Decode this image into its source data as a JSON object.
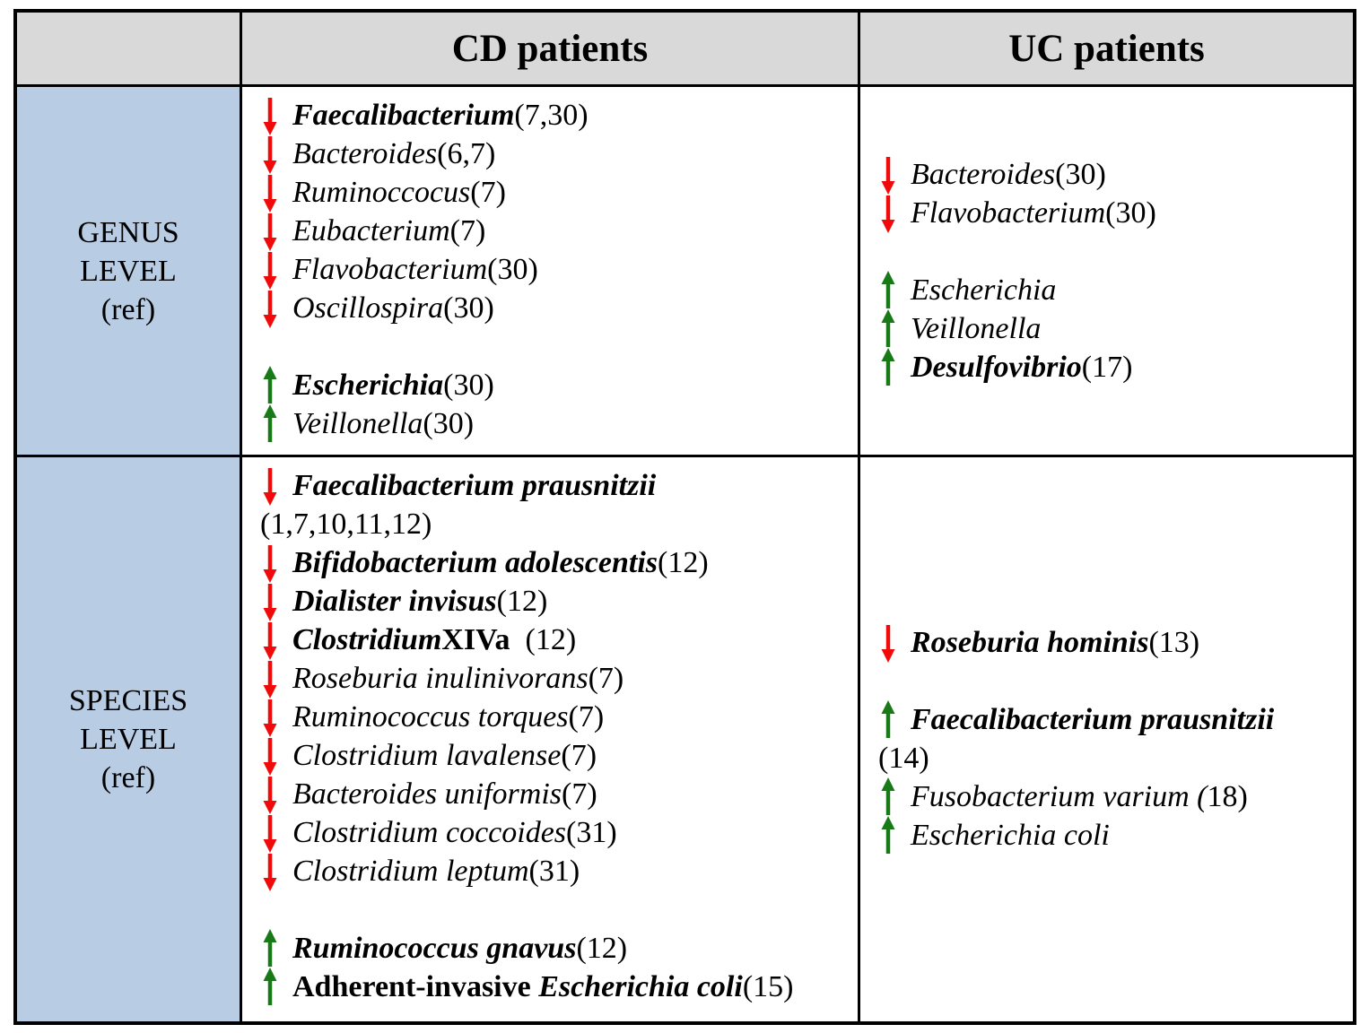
{
  "table": {
    "header": {
      "corner": "",
      "cd": "CD patients",
      "uc": "UC patients"
    },
    "row_labels": [
      {
        "lines": [
          "GENUS",
          "LEVEL",
          "(ref)"
        ]
      },
      {
        "lines": [
          "SPECIES",
          "LEVEL",
          "(ref)"
        ]
      }
    ],
    "colors": {
      "header_bg": "#d9d9d9",
      "label_bg": "#b8cce4",
      "border": "#000000",
      "decrease_arrow": "#f00a0a",
      "increase_arrow": "#177a17"
    },
    "cells": {
      "genus_cd": {
        "lines": [
          {
            "arrow": "down",
            "segments": [
              {
                "text": "Faecalibacterium",
                "style": "bi"
              },
              {
                "text": " (7,30)",
                "style": "r"
              }
            ]
          },
          {
            "arrow": "down",
            "segments": [
              {
                "text": "Bacteroides",
                "style": "i"
              },
              {
                "text": " (6,7)",
                "style": "r"
              }
            ]
          },
          {
            "arrow": "down",
            "segments": [
              {
                "text": "Ruminoccocus",
                "style": "i"
              },
              {
                "text": " (7)",
                "style": "r"
              }
            ]
          },
          {
            "arrow": "down",
            "segments": [
              {
                "text": "Eubacterium",
                "style": "i"
              },
              {
                "text": " (7)",
                "style": "r"
              }
            ]
          },
          {
            "arrow": "down",
            "segments": [
              {
                "text": "Flavobacterium",
                "style": "i"
              },
              {
                "text": " (30)",
                "style": "r"
              }
            ]
          },
          {
            "arrow": "down",
            "segments": [
              {
                "text": "Oscillospira",
                "style": "i"
              },
              {
                "text": " (30)",
                "style": "r"
              }
            ]
          },
          {
            "blank": true
          },
          {
            "arrow": "up",
            "segments": [
              {
                "text": "Escherichia",
                "style": "bi"
              },
              {
                "text": " (30)",
                "style": "r"
              }
            ]
          },
          {
            "arrow": "up",
            "segments": [
              {
                "text": "Veillonella",
                "style": "i"
              },
              {
                "text": " (30)",
                "style": "r"
              }
            ]
          }
        ]
      },
      "genus_uc": {
        "lines": [
          {
            "arrow": "down",
            "segments": [
              {
                "text": "Bacteroides",
                "style": "i"
              },
              {
                "text": " (30)",
                "style": "r"
              }
            ]
          },
          {
            "arrow": "down",
            "segments": [
              {
                "text": "Flavobacterium",
                "style": "i"
              },
              {
                "text": " (30)",
                "style": "r"
              }
            ]
          },
          {
            "blank": true
          },
          {
            "arrow": "up",
            "segments": [
              {
                "text": "Escherichia",
                "style": "i"
              }
            ]
          },
          {
            "arrow": "up",
            "segments": [
              {
                "text": "Veillonella",
                "style": "i"
              }
            ]
          },
          {
            "arrow": "up",
            "segments": [
              {
                "text": "Desulfovibrio",
                "style": "bi"
              },
              {
                "text": " (17)",
                "style": "r"
              }
            ]
          }
        ]
      },
      "species_cd": {
        "lines": [
          {
            "arrow": "down",
            "segments": [
              {
                "text": "Faecalibacterium prausnitzii",
                "style": "bi"
              }
            ]
          },
          {
            "arrow": null,
            "segments": [
              {
                "text": "(1,7,10,11,12)",
                "style": "r"
              }
            ]
          },
          {
            "arrow": "down",
            "segments": [
              {
                "text": "Bifidobacterium adolescentis",
                "style": "bi"
              },
              {
                "text": " (12)",
                "style": "r"
              }
            ]
          },
          {
            "arrow": "down",
            "segments": [
              {
                "text": "Dialister invisus",
                "style": "bi"
              },
              {
                "text": " (12)",
                "style": "r"
              }
            ]
          },
          {
            "arrow": "down",
            "segments": [
              {
                "text": "Clostridium",
                "style": "bi"
              },
              {
                "text": " XIVa",
                "style": "b"
              },
              {
                "text": "  (12)",
                "style": "r"
              }
            ]
          },
          {
            "arrow": "down",
            "segments": [
              {
                "text": "Roseburia inulinivorans",
                "style": "i"
              },
              {
                "text": " (7)",
                "style": "r"
              }
            ]
          },
          {
            "arrow": "down",
            "segments": [
              {
                "text": "Ruminococcus torques",
                "style": "i"
              },
              {
                "text": " (7)",
                "style": "r"
              }
            ]
          },
          {
            "arrow": "down",
            "segments": [
              {
                "text": "Clostridium lavalense",
                "style": "i"
              },
              {
                "text": " (7)",
                "style": "r"
              }
            ]
          },
          {
            "arrow": "down",
            "segments": [
              {
                "text": "Bacteroides uniformis",
                "style": "i"
              },
              {
                "text": " (7)",
                "style": "r"
              }
            ]
          },
          {
            "arrow": "down",
            "segments": [
              {
                "text": "Clostridium coccoides",
                "style": "i"
              },
              {
                "text": " (31)",
                "style": "r"
              }
            ]
          },
          {
            "arrow": "down",
            "segments": [
              {
                "text": "Clostridium leptum",
                "style": "i"
              },
              {
                "text": " (31)",
                "style": "r"
              }
            ]
          },
          {
            "blank": true
          },
          {
            "arrow": "up",
            "segments": [
              {
                "text": "Ruminococcus gnavus",
                "style": "bi"
              },
              {
                "text": " (12)",
                "style": "r"
              }
            ]
          },
          {
            "arrow": "up",
            "segments": [
              {
                "text": "Adherent-invasive",
                "style": "b"
              },
              {
                "text": "  ",
                "style": "r"
              },
              {
                "text": "Escherichia coli",
                "style": "bi"
              },
              {
                "text": " (15)",
                "style": "r"
              }
            ]
          }
        ]
      },
      "species_uc": {
        "lines": [
          {
            "arrow": "down",
            "segments": [
              {
                "text": "Roseburia hominis",
                "style": "bi"
              },
              {
                "text": " (13)",
                "style": "r"
              }
            ]
          },
          {
            "blank": true
          },
          {
            "arrow": "up",
            "segments": [
              {
                "text": "Faecalibacterium prausnitzii",
                "style": "bi"
              }
            ]
          },
          {
            "arrow": null,
            "segments": [
              {
                "text": "(14)",
                "style": "r"
              }
            ]
          },
          {
            "arrow": "up",
            "segments": [
              {
                "text": "Fusobacterium varium (",
                "style": "i"
              },
              {
                "text": "18)",
                "style": "r"
              }
            ]
          },
          {
            "arrow": "up",
            "segments": [
              {
                "text": "Escherichia coli",
                "style": "i"
              }
            ]
          }
        ]
      }
    }
  }
}
